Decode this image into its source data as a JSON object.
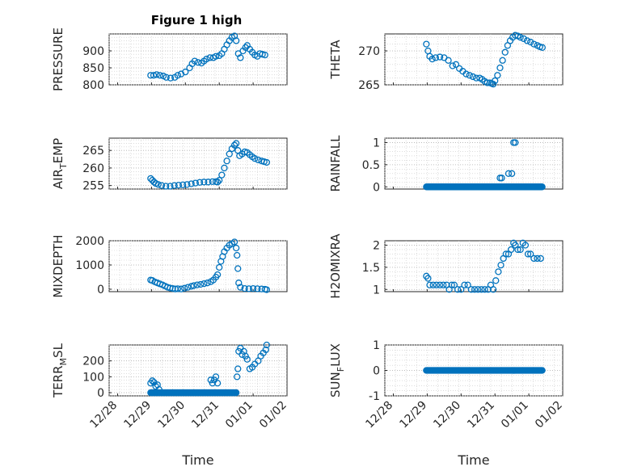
{
  "figure": {
    "title": "Figure 1 high",
    "marker_color": "#0072bd"
  },
  "chart_data": [
    {
      "type": "scatter",
      "ylabel": "PRESSURE",
      "xlabel": "",
      "ylim": [
        800,
        950
      ],
      "yticks": [
        "800",
        "850",
        "900"
      ],
      "ytick_values": [
        800,
        850,
        900
      ],
      "xlim": [
        0,
        4
      ],
      "xticks": [
        "12/28",
        "12/29",
        "12/30",
        "12/31",
        "01/01",
        "01/02"
      ],
      "grid": true,
      "points": [
        [
          0.98,
          828
        ],
        [
          1.05,
          828
        ],
        [
          1.12,
          830
        ],
        [
          1.2,
          828
        ],
        [
          1.28,
          826
        ],
        [
          1.35,
          822
        ],
        [
          1.45,
          820
        ],
        [
          1.55,
          822
        ],
        [
          1.62,
          828
        ],
        [
          1.7,
          832
        ],
        [
          1.8,
          838
        ],
        [
          1.9,
          850
        ],
        [
          1.96,
          862
        ],
        [
          2.02,
          870
        ],
        [
          2.1,
          866
        ],
        [
          2.18,
          864
        ],
        [
          2.24,
          870
        ],
        [
          2.3,
          876
        ],
        [
          2.38,
          880
        ],
        [
          2.46,
          880
        ],
        [
          2.52,
          884
        ],
        [
          2.6,
          886
        ],
        [
          2.66,
          892
        ],
        [
          2.72,
          905
        ],
        [
          2.78,
          918
        ],
        [
          2.84,
          930
        ],
        [
          2.9,
          940
        ],
        [
          2.96,
          944
        ],
        [
          3.0,
          930
        ],
        [
          3.05,
          892
        ],
        [
          3.1,
          880
        ],
        [
          3.16,
          900
        ],
        [
          3.22,
          910
        ],
        [
          3.26,
          916
        ],
        [
          3.32,
          905
        ],
        [
          3.38,
          896
        ],
        [
          3.44,
          888
        ],
        [
          3.5,
          884
        ],
        [
          3.56,
          892
        ],
        [
          3.62,
          890
        ],
        [
          3.68,
          888
        ]
      ]
    },
    {
      "type": "scatter",
      "ylabel": "THETA",
      "xlabel": "",
      "ylim": [
        265,
        272.5
      ],
      "yticks": [
        "265",
        "270"
      ],
      "ytick_values": [
        265,
        270
      ],
      "xlim": [
        0,
        4
      ],
      "xticks": [
        "12/28",
        "12/29",
        "12/30",
        "12/31",
        "01/01",
        "01/02"
      ],
      "grid": true,
      "points": [
        [
          0.98,
          271
        ],
        [
          1.02,
          270
        ],
        [
          1.06,
          269.2
        ],
        [
          1.12,
          268.8
        ],
        [
          1.2,
          269
        ],
        [
          1.3,
          269.1
        ],
        [
          1.4,
          269
        ],
        [
          1.5,
          268.6
        ],
        [
          1.6,
          267.8
        ],
        [
          1.68,
          268
        ],
        [
          1.76,
          267.4
        ],
        [
          1.84,
          267
        ],
        [
          1.92,
          266.6
        ],
        [
          2.0,
          266.4
        ],
        [
          2.08,
          266.2
        ],
        [
          2.16,
          266
        ],
        [
          2.24,
          266
        ],
        [
          2.3,
          265.8
        ],
        [
          2.36,
          265.5
        ],
        [
          2.42,
          265.3
        ],
        [
          2.48,
          265.3
        ],
        [
          2.52,
          265.2
        ],
        [
          2.56,
          265.1
        ],
        [
          2.6,
          265.6
        ],
        [
          2.66,
          266.4
        ],
        [
          2.72,
          267.5
        ],
        [
          2.78,
          268.6
        ],
        [
          2.84,
          269.8
        ],
        [
          2.9,
          270.8
        ],
        [
          2.96,
          271.5
        ],
        [
          3.02,
          272
        ],
        [
          3.08,
          272.3
        ],
        [
          3.14,
          272.2
        ],
        [
          3.2,
          272
        ],
        [
          3.28,
          271.8
        ],
        [
          3.36,
          271.5
        ],
        [
          3.44,
          271.3
        ],
        [
          3.52,
          271
        ],
        [
          3.6,
          270.8
        ],
        [
          3.66,
          270.6
        ],
        [
          3.72,
          270.5
        ]
      ]
    },
    {
      "type": "scatter",
      "ylabel": "AIR",
      "ylabel_sub": "T",
      "ylabel_rest": "EMP",
      "xlabel": "",
      "ylim": [
        254,
        268.5
      ],
      "yticks": [
        "255",
        "260",
        "265"
      ],
      "ytick_values": [
        255,
        260,
        265
      ],
      "xlim": [
        0,
        4
      ],
      "xticks": [
        "12/28",
        "12/29",
        "12/30",
        "12/31",
        "01/01",
        "01/02"
      ],
      "grid": true,
      "points": [
        [
          0.98,
          257
        ],
        [
          1.02,
          256.5
        ],
        [
          1.06,
          256
        ],
        [
          1.1,
          255.6
        ],
        [
          1.16,
          255.3
        ],
        [
          1.24,
          255
        ],
        [
          1.34,
          254.8
        ],
        [
          1.44,
          254.8
        ],
        [
          1.54,
          255
        ],
        [
          1.64,
          255.1
        ],
        [
          1.74,
          255.2
        ],
        [
          1.84,
          255.3
        ],
        [
          1.94,
          255.5
        ],
        [
          2.04,
          255.7
        ],
        [
          2.14,
          255.9
        ],
        [
          2.24,
          256
        ],
        [
          2.34,
          256
        ],
        [
          2.44,
          256.1
        ],
        [
          2.52,
          256.1
        ],
        [
          2.56,
          256
        ],
        [
          2.6,
          256.5
        ],
        [
          2.66,
          258
        ],
        [
          2.72,
          260
        ],
        [
          2.78,
          262
        ],
        [
          2.84,
          264
        ],
        [
          2.9,
          265.5
        ],
        [
          2.96,
          266.5
        ],
        [
          3.0,
          267
        ],
        [
          3.04,
          265
        ],
        [
          3.08,
          263.5
        ],
        [
          3.14,
          264
        ],
        [
          3.2,
          264.6
        ],
        [
          3.26,
          264.4
        ],
        [
          3.32,
          263.8
        ],
        [
          3.38,
          263.2
        ],
        [
          3.44,
          262.7
        ],
        [
          3.52,
          262.3
        ],
        [
          3.6,
          262
        ],
        [
          3.66,
          261.8
        ],
        [
          3.72,
          261.6
        ]
      ]
    },
    {
      "type": "scatter",
      "ylabel": "RAINFALL",
      "xlabel": "",
      "ylim": [
        -0.05,
        1.1
      ],
      "yticks": [
        "0",
        "0.5",
        "1"
      ],
      "ytick_values": [
        0,
        0.5,
        1
      ],
      "xlim": [
        0,
        4
      ],
      "xticks": [
        "12/28",
        "12/29",
        "12/30",
        "12/31",
        "01/01",
        "01/02"
      ],
      "grid": true,
      "zero_run": [
        0.98,
        3.72
      ],
      "points": [
        [
          2.72,
          0.2
        ],
        [
          2.76,
          0.2
        ],
        [
          2.92,
          0.3
        ],
        [
          3.0,
          0.3
        ],
        [
          3.04,
          1.0
        ],
        [
          3.08,
          1.0
        ],
        [
          2.88,
          0.0
        ]
      ]
    },
    {
      "type": "scatter",
      "ylabel": "MIXDEPTH",
      "xlabel": "",
      "ylim": [
        -100,
        2000
      ],
      "yticks": [
        "0",
        "1000",
        "2000"
      ],
      "ytick_values": [
        0,
        1000,
        2000
      ],
      "xlim": [
        0,
        4
      ],
      "xticks": [
        "12/28",
        "12/29",
        "12/30",
        "12/31",
        "01/01",
        "01/02"
      ],
      "grid": true,
      "points": [
        [
          0.98,
          380
        ],
        [
          1.02,
          360
        ],
        [
          1.08,
          300
        ],
        [
          1.14,
          260
        ],
        [
          1.2,
          220
        ],
        [
          1.26,
          180
        ],
        [
          1.32,
          130
        ],
        [
          1.38,
          80
        ],
        [
          1.44,
          50
        ],
        [
          1.5,
          30
        ],
        [
          1.56,
          10
        ],
        [
          1.62,
          20
        ],
        [
          1.7,
          10
        ],
        [
          1.78,
          40
        ],
        [
          1.86,
          80
        ],
        [
          1.94,
          120
        ],
        [
          2.0,
          150
        ],
        [
          2.08,
          180
        ],
        [
          2.16,
          200
        ],
        [
          2.24,
          230
        ],
        [
          2.32,
          260
        ],
        [
          2.4,
          310
        ],
        [
          2.46,
          380
        ],
        [
          2.52,
          500
        ],
        [
          2.56,
          600
        ],
        [
          2.6,
          900
        ],
        [
          2.64,
          1150
        ],
        [
          2.68,
          1350
        ],
        [
          2.72,
          1550
        ],
        [
          2.78,
          1700
        ],
        [
          2.84,
          1820
        ],
        [
          2.9,
          1880
        ],
        [
          2.96,
          1950
        ],
        [
          3.0,
          1700
        ],
        [
          3.02,
          1400
        ],
        [
          3.04,
          850
        ],
        [
          3.06,
          260
        ],
        [
          3.1,
          80
        ],
        [
          3.2,
          30
        ],
        [
          3.3,
          20
        ],
        [
          3.4,
          30
        ],
        [
          3.5,
          20
        ],
        [
          3.6,
          10
        ],
        [
          3.68,
          0
        ],
        [
          3.72,
          -20
        ]
      ]
    },
    {
      "type": "scatter",
      "ylabel": "H2OMIXRA",
      "xlabel": "",
      "ylim": [
        0.95,
        2.1
      ],
      "yticks": [
        "1",
        "1.5",
        "2"
      ],
      "ytick_values": [
        1,
        1.5,
        2
      ],
      "xlim": [
        0,
        4
      ],
      "xticks": [
        "12/28",
        "12/29",
        "12/30",
        "12/31",
        "01/01",
        "01/02"
      ],
      "grid": true,
      "points": [
        [
          0.98,
          1.3
        ],
        [
          1.02,
          1.25
        ],
        [
          1.06,
          1.1
        ],
        [
          1.14,
          1.1
        ],
        [
          1.22,
          1.1
        ],
        [
          1.3,
          1.1
        ],
        [
          1.38,
          1.1
        ],
        [
          1.46,
          1.1
        ],
        [
          1.52,
          1.0
        ],
        [
          1.58,
          1.1
        ],
        [
          1.64,
          1.1
        ],
        [
          1.72,
          1.0
        ],
        [
          1.8,
          1.0
        ],
        [
          1.88,
          1.1
        ],
        [
          1.96,
          1.1
        ],
        [
          2.04,
          1.0
        ],
        [
          2.12,
          1.0
        ],
        [
          2.2,
          1.0
        ],
        [
          2.28,
          1.0
        ],
        [
          2.36,
          1.0
        ],
        [
          2.44,
          1.0
        ],
        [
          2.5,
          1.1
        ],
        [
          2.56,
          1.0
        ],
        [
          2.62,
          1.2
        ],
        [
          2.68,
          1.4
        ],
        [
          2.74,
          1.55
        ],
        [
          2.8,
          1.7
        ],
        [
          2.86,
          1.8
        ],
        [
          2.92,
          1.8
        ],
        [
          2.98,
          1.9
        ],
        [
          3.04,
          2.05
        ],
        [
          3.08,
          2.0
        ],
        [
          3.14,
          1.9
        ],
        [
          3.2,
          1.9
        ],
        [
          3.26,
          2.05
        ],
        [
          3.32,
          2.0
        ],
        [
          3.38,
          1.8
        ],
        [
          3.44,
          1.8
        ],
        [
          3.52,
          1.7
        ],
        [
          3.6,
          1.7
        ],
        [
          3.68,
          1.7
        ]
      ]
    },
    {
      "type": "scatter",
      "ylabel": "TERR",
      "ylabel_sub": "M",
      "ylabel_rest": "SL",
      "xlabel": "Time",
      "ylim": [
        -20,
        300
      ],
      "yticks": [
        "0",
        "100",
        "200"
      ],
      "ytick_values": [
        0,
        100,
        200
      ],
      "xlim": [
        0,
        4
      ],
      "xticks": [
        "12/28",
        "12/29",
        "12/30",
        "12/31",
        "01/01",
        "01/02"
      ],
      "grid": true,
      "zero_run": [
        0.98,
        3.0
      ],
      "points": [
        [
          0.98,
          60
        ],
        [
          1.02,
          75
        ],
        [
          1.06,
          65
        ],
        [
          1.1,
          40
        ],
        [
          1.14,
          50
        ],
        [
          1.18,
          20
        ],
        [
          2.4,
          80
        ],
        [
          2.44,
          60
        ],
        [
          2.48,
          80
        ],
        [
          2.52,
          100
        ],
        [
          2.56,
          60
        ],
        [
          3.0,
          0
        ],
        [
          3.02,
          100
        ],
        [
          3.04,
          150
        ],
        [
          3.06,
          260
        ],
        [
          3.1,
          280
        ],
        [
          3.14,
          240
        ],
        [
          3.18,
          260
        ],
        [
          3.22,
          230
        ],
        [
          3.26,
          210
        ],
        [
          3.32,
          150
        ],
        [
          3.38,
          160
        ],
        [
          3.44,
          180
        ],
        [
          3.52,
          200
        ],
        [
          3.58,
          230
        ],
        [
          3.64,
          250
        ],
        [
          3.7,
          270
        ],
        [
          3.72,
          300
        ]
      ]
    },
    {
      "type": "scatter",
      "ylabel": "SUN",
      "ylabel_sub": "F",
      "ylabel_rest": "LUX",
      "xlabel": "Time",
      "ylim": [
        -1,
        1
      ],
      "yticks": [
        "-1",
        "0",
        "1"
      ],
      "ytick_values": [
        -1,
        0,
        1
      ],
      "xlim": [
        0,
        4
      ],
      "xticks": [
        "12/28",
        "12/29",
        "12/30",
        "12/31",
        "01/01",
        "01/02"
      ],
      "grid": true,
      "zero_run": [
        0.98,
        3.72
      ],
      "points": []
    }
  ]
}
